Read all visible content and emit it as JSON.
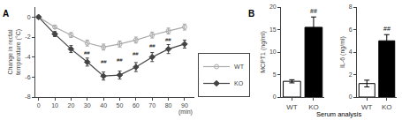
{
  "chart_data": [
    {
      "type": "line",
      "title": "A",
      "x_label": "(min)",
      "y_label": "Change in rectal\ntemperature (°C)",
      "x": [
        0,
        10,
        20,
        30,
        40,
        50,
        60,
        70,
        80,
        90
      ],
      "series": [
        {
          "name": "WT",
          "color": "#aaaaaa",
          "marker": "circle-open",
          "values": [
            0,
            -1.0,
            -1.8,
            -2.6,
            -3.0,
            -2.7,
            -2.3,
            -1.8,
            -1.4,
            -1.0
          ],
          "errors": [
            0.05,
            0.15,
            0.25,
            0.3,
            0.3,
            0.3,
            0.3,
            0.3,
            0.3,
            0.3
          ]
        },
        {
          "name": "KO",
          "color": "#444444",
          "marker": "diamond",
          "values": [
            0,
            -1.7,
            -3.2,
            -4.5,
            -5.9,
            -5.8,
            -5.0,
            -4.0,
            -3.2,
            -2.7
          ],
          "errors": [
            0.05,
            0.25,
            0.35,
            0.4,
            0.4,
            0.4,
            0.45,
            0.45,
            0.45,
            0.4
          ]
        }
      ],
      "xlim": [
        -2,
        96
      ],
      "xticks": [
        0,
        10,
        20,
        30,
        40,
        50,
        60,
        70,
        80,
        90
      ],
      "ylim": [
        -8,
        1
      ],
      "yticks": [
        -8,
        -6,
        -4,
        -2,
        0
      ],
      "legend": "lower right",
      "grid": false,
      "annotations": [
        {
          "x": 30,
          "text": "##"
        },
        {
          "x": 40,
          "text": "##"
        },
        {
          "x": 50,
          "text": "##"
        },
        {
          "x": 60,
          "text": "##"
        },
        {
          "x": 70,
          "text": "##"
        },
        {
          "x": 80,
          "text": "##"
        }
      ]
    },
    {
      "type": "bar",
      "title": "B",
      "x_label": "Serum analysis",
      "y_label": "MCPT1 (ng/ml)",
      "categories": [
        "WT",
        "KO"
      ],
      "values": [
        3.5,
        15.5
      ],
      "errors": [
        0.35,
        2.3
      ],
      "colors": [
        "white",
        "black"
      ],
      "ylim": [
        0,
        20
      ],
      "yticks": [
        0,
        5,
        10,
        15,
        20
      ],
      "grid": false,
      "annotations": [
        {
          "x": "KO",
          "text": "##"
        }
      ]
    },
    {
      "type": "bar",
      "y_label": "IL-6 (ng/ml)",
      "categories": [
        "WT",
        "KO"
      ],
      "values": [
        1.2,
        5.0
      ],
      "errors": [
        0.3,
        0.55
      ],
      "colors": [
        "white",
        "black"
      ],
      "ylim": [
        0,
        8
      ],
      "yticks": [
        0,
        2,
        4,
        6,
        8
      ],
      "grid": false,
      "annotations": [
        {
          "x": "KO",
          "text": "##"
        }
      ]
    }
  ]
}
